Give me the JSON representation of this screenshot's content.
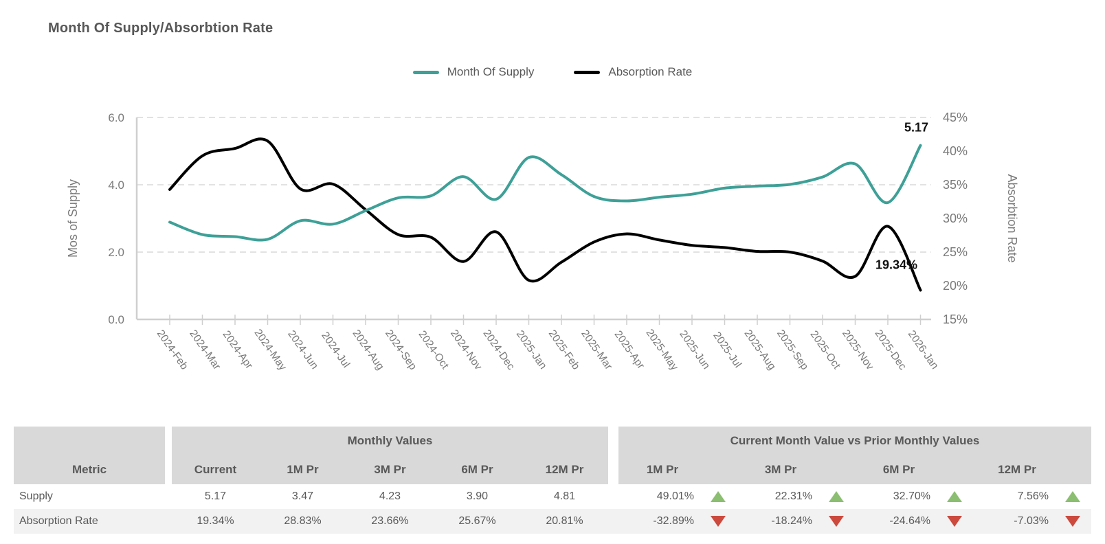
{
  "title": "Month Of Supply/Absorbtion Rate",
  "legend": [
    {
      "label": "Month Of Supply",
      "color": "#3ea097"
    },
    {
      "label": "Absorption Rate",
      "color": "#000000"
    }
  ],
  "chart_data": {
    "type": "line",
    "x": [
      "2024-Feb",
      "2024-Mar",
      "2024-Apr",
      "2024-May",
      "2024-Jun",
      "2024-Jul",
      "2024-Aug",
      "2024-Sep",
      "2024-Oct",
      "2024-Nov",
      "2024-Dec",
      "2025-Jan",
      "2025-Feb",
      "2025-Mar",
      "2025-Apr",
      "2025-May",
      "2025-Jun",
      "2025-Jul",
      "2025-Aug",
      "2025-Sep",
      "2025-Oct",
      "2025-Nov",
      "2025-Dec",
      "2026-Jan"
    ],
    "series": [
      {
        "name": "Absorption Rate",
        "axis": "right",
        "color": "#000000",
        "end_label": "19.34%",
        "values": [
          34.3,
          39.3,
          40.4,
          41.5,
          34.4,
          35.1,
          31.3,
          27.6,
          27.2,
          23.6,
          28.0,
          20.81,
          23.5,
          26.5,
          27.7,
          26.8,
          26.0,
          25.67,
          25.1,
          25.0,
          23.66,
          21.4,
          28.83,
          19.34
        ]
      },
      {
        "name": "Month Of Supply",
        "axis": "left",
        "color": "#3ea097",
        "end_label": "5.17",
        "values": [
          2.89,
          2.52,
          2.46,
          2.38,
          2.93,
          2.83,
          3.23,
          3.61,
          3.67,
          4.24,
          3.57,
          4.81,
          4.3,
          3.65,
          3.52,
          3.63,
          3.72,
          3.9,
          3.96,
          4.01,
          4.23,
          4.62,
          3.47,
          5.17
        ]
      }
    ],
    "left_axis": {
      "title": "Mos of Supply",
      "ticks": [
        "0.0",
        "2.0",
        "4.0",
        "6.0"
      ],
      "tick_values": [
        0,
        2,
        4,
        6
      ],
      "min": 0,
      "max": 6
    },
    "right_axis": {
      "title": "Absorbtion Rate",
      "ticks": [
        "15%",
        "20%",
        "25%",
        "30%",
        "35%",
        "40%",
        "45%"
      ],
      "tick_values": [
        15,
        20,
        25,
        30,
        35,
        40,
        45
      ],
      "min": 15,
      "max": 45
    },
    "grid": {
      "horizontal_dashed_at_left_values": [
        2,
        4,
        6
      ],
      "color": "#d9d9d9"
    },
    "legend_position": "top-center"
  },
  "table": {
    "metric_header": "Metric",
    "group_headers": {
      "monthly": "Monthly Values",
      "comparison": "Current Month Value vs Prior Monthly Values"
    },
    "monthly_columns": [
      "Current",
      "1M Pr",
      "3M Pr",
      "6M Pr",
      "12M Pr"
    ],
    "comparison_columns": [
      "1M Pr",
      "3M Pr",
      "6M Pr",
      "12M Pr"
    ],
    "rows": [
      {
        "metric": "Supply",
        "monthly": [
          "5.17",
          "3.47",
          "4.23",
          "3.90",
          "4.81"
        ],
        "comparison": [
          {
            "value": "49.01%",
            "direction": "up"
          },
          {
            "value": "22.31%",
            "direction": "up"
          },
          {
            "value": "32.70%",
            "direction": "up"
          },
          {
            "value": "7.56%",
            "direction": "up"
          }
        ]
      },
      {
        "metric": "Absorption Rate",
        "monthly": [
          "19.34%",
          "28.83%",
          "23.66%",
          "25.67%",
          "20.81%"
        ],
        "comparison": [
          {
            "value": "-32.89%",
            "direction": "down"
          },
          {
            "value": "-18.24%",
            "direction": "down"
          },
          {
            "value": "-24.64%",
            "direction": "down"
          },
          {
            "value": "-7.03%",
            "direction": "down"
          }
        ]
      }
    ],
    "up_color": "#8cbe72",
    "down_color": "#cc4a3d",
    "header_bg": "#d9d9d9",
    "alt_row_bg": "#f2f2f2"
  }
}
